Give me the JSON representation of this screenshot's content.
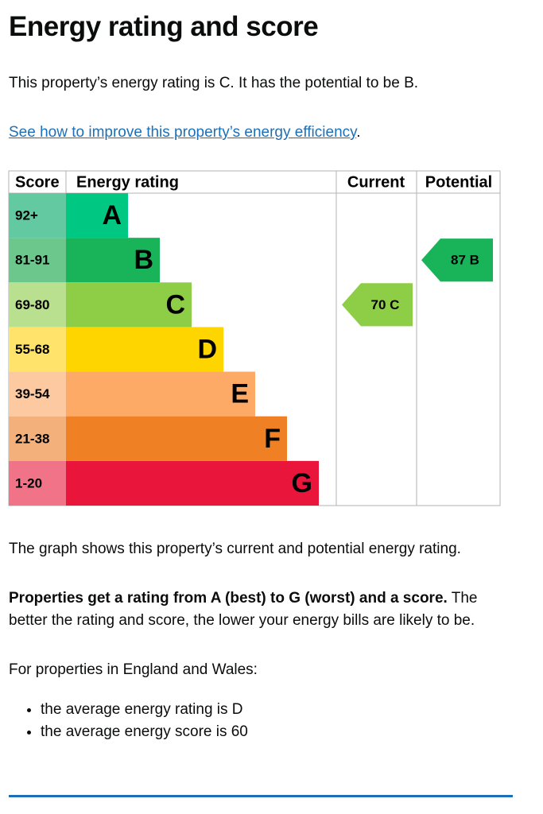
{
  "header": {
    "title": "Energy rating and score"
  },
  "intro": "This property’s energy rating is C. It has the potential to be B.",
  "link": {
    "text": "See how to improve this property’s energy efficiency",
    "suffix": "."
  },
  "rating_chart": {
    "headers": [
      "Score",
      "Energy rating",
      "Current",
      "Potential"
    ],
    "rows": [
      {
        "score": "92+",
        "band": "A",
        "color": "#00c781",
        "cell_color": "#62c9a1"
      },
      {
        "score": "81-91",
        "band": "B",
        "color": "#19b459",
        "cell_color": "#6cc78d"
      },
      {
        "score": "69-80",
        "band": "C",
        "color": "#8dce46",
        "cell_color": "#b9e08f"
      },
      {
        "score": "55-68",
        "band": "D",
        "color": "#ffd500",
        "cell_color": "#ffe36a"
      },
      {
        "score": "39-54",
        "band": "E",
        "color": "#fcaa65",
        "cell_color": "#fdc9a0"
      },
      {
        "score": "21-38",
        "band": "F",
        "color": "#ef8023",
        "cell_color": "#f4b07a"
      },
      {
        "score": "1-20",
        "band": "G",
        "color": "#e9153b",
        "cell_color": "#f07388"
      }
    ],
    "current": {
      "label": "70 C",
      "band": "C"
    },
    "potential": {
      "label": "87 B",
      "band": "B"
    }
  },
  "paragraphs": {
    "graph_note": "The graph shows this property’s current and potential energy rating.",
    "rating_bold": "Properties get a rating from A (best) to G (worst) and a score.",
    "rating_rest": " The better the rating and score, the lower your energy bills are likely to be.",
    "england_wales": "For properties in England and Wales:"
  },
  "bullets": [
    "the average energy rating is D",
    "the average energy score is 60"
  ]
}
